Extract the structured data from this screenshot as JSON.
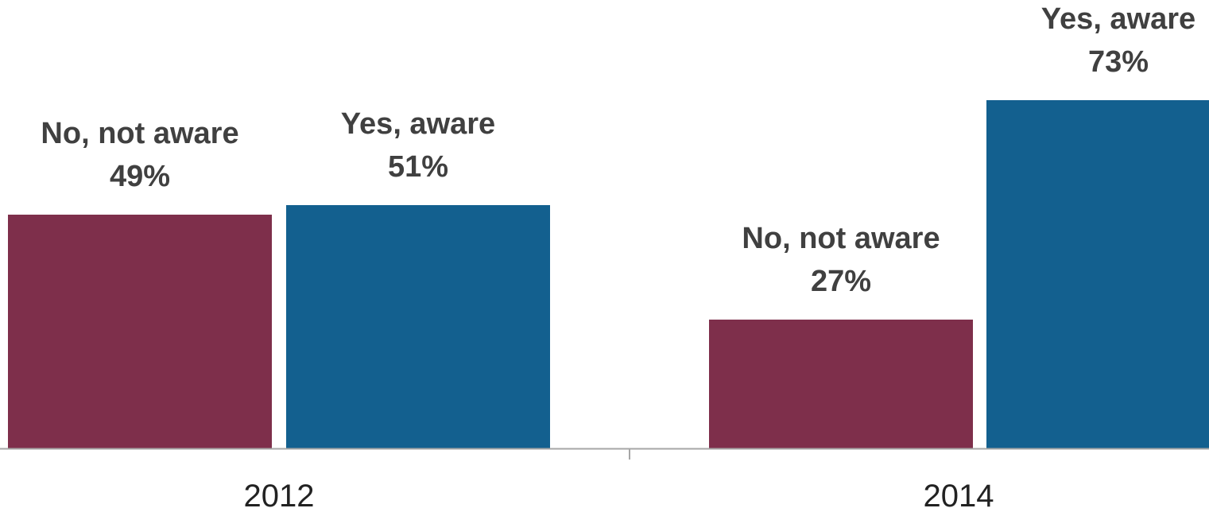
{
  "chart_data": {
    "type": "bar",
    "categories": [
      "2012",
      "2014"
    ],
    "series": [
      {
        "name": "No, not aware",
        "values": [
          49,
          27
        ],
        "color": "#7E2F4B"
      },
      {
        "name": "Yes, aware",
        "values": [
          51,
          73
        ],
        "color": "#13608F"
      }
    ],
    "value_suffix": "%",
    "title": "",
    "xlabel": "",
    "ylabel": "",
    "ylim": [
      0,
      86
    ],
    "grid": false,
    "legend": "none",
    "axis_color": "#A6A6A6",
    "label_color": "#404040"
  }
}
